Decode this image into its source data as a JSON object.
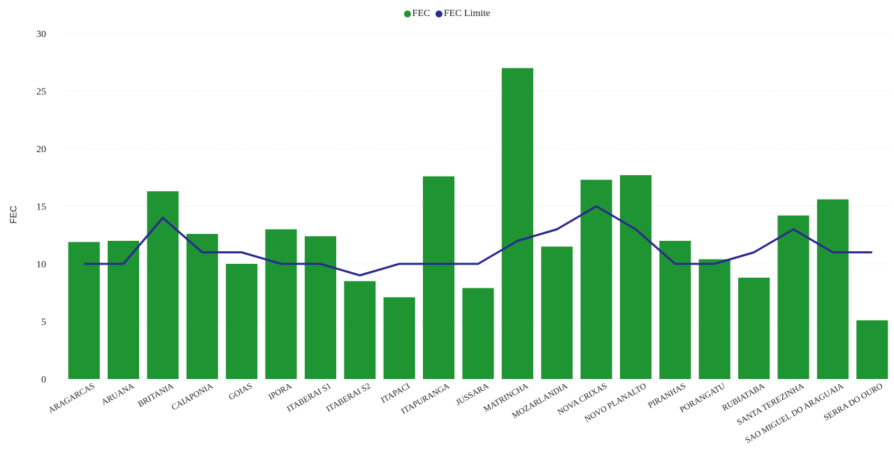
{
  "chart_data": {
    "type": "bar",
    "title": "",
    "xlabel": "",
    "ylabel": "FEC",
    "ylim": [
      0,
      30
    ],
    "yticks": [
      0,
      5,
      10,
      15,
      20,
      25,
      30
    ],
    "grid": true,
    "legend_position": "top-center",
    "categories": [
      "ARAGARCAS",
      "ARUANA",
      "BRITANIA",
      "CAIAPONIA",
      "GOIAS",
      "IPORA",
      "ITABERAI S1",
      "ITABERAI S2",
      "ITAPACI",
      "ITAPURANGA",
      "JUSSARA",
      "MATRINCHA",
      "MOZARLANDIA",
      "NOVA CRIXAS",
      "NOVO PLANALTO",
      "PIRANHAS",
      "PORANGATU",
      "RUBIATABA",
      "SANTA TEREZINHA",
      "SAO MIGUEL DO ARAGUAIA",
      "SERRA DO OURO"
    ],
    "series": [
      {
        "name": "FEC",
        "type": "bar",
        "color": "#1f9433",
        "values": [
          11.9,
          12.0,
          16.3,
          12.6,
          10.0,
          13.0,
          12.4,
          8.5,
          7.1,
          17.6,
          7.9,
          27.0,
          11.5,
          17.3,
          17.7,
          12.0,
          10.4,
          8.8,
          14.2,
          15.6,
          5.1
        ]
      },
      {
        "name": "FEC Limite",
        "type": "line",
        "color": "#2b2a8f",
        "values": [
          10,
          10,
          14,
          11,
          11,
          10,
          10,
          9,
          10,
          10,
          10,
          12,
          13,
          15,
          13,
          10,
          10,
          11,
          13,
          11,
          11
        ]
      }
    ]
  }
}
